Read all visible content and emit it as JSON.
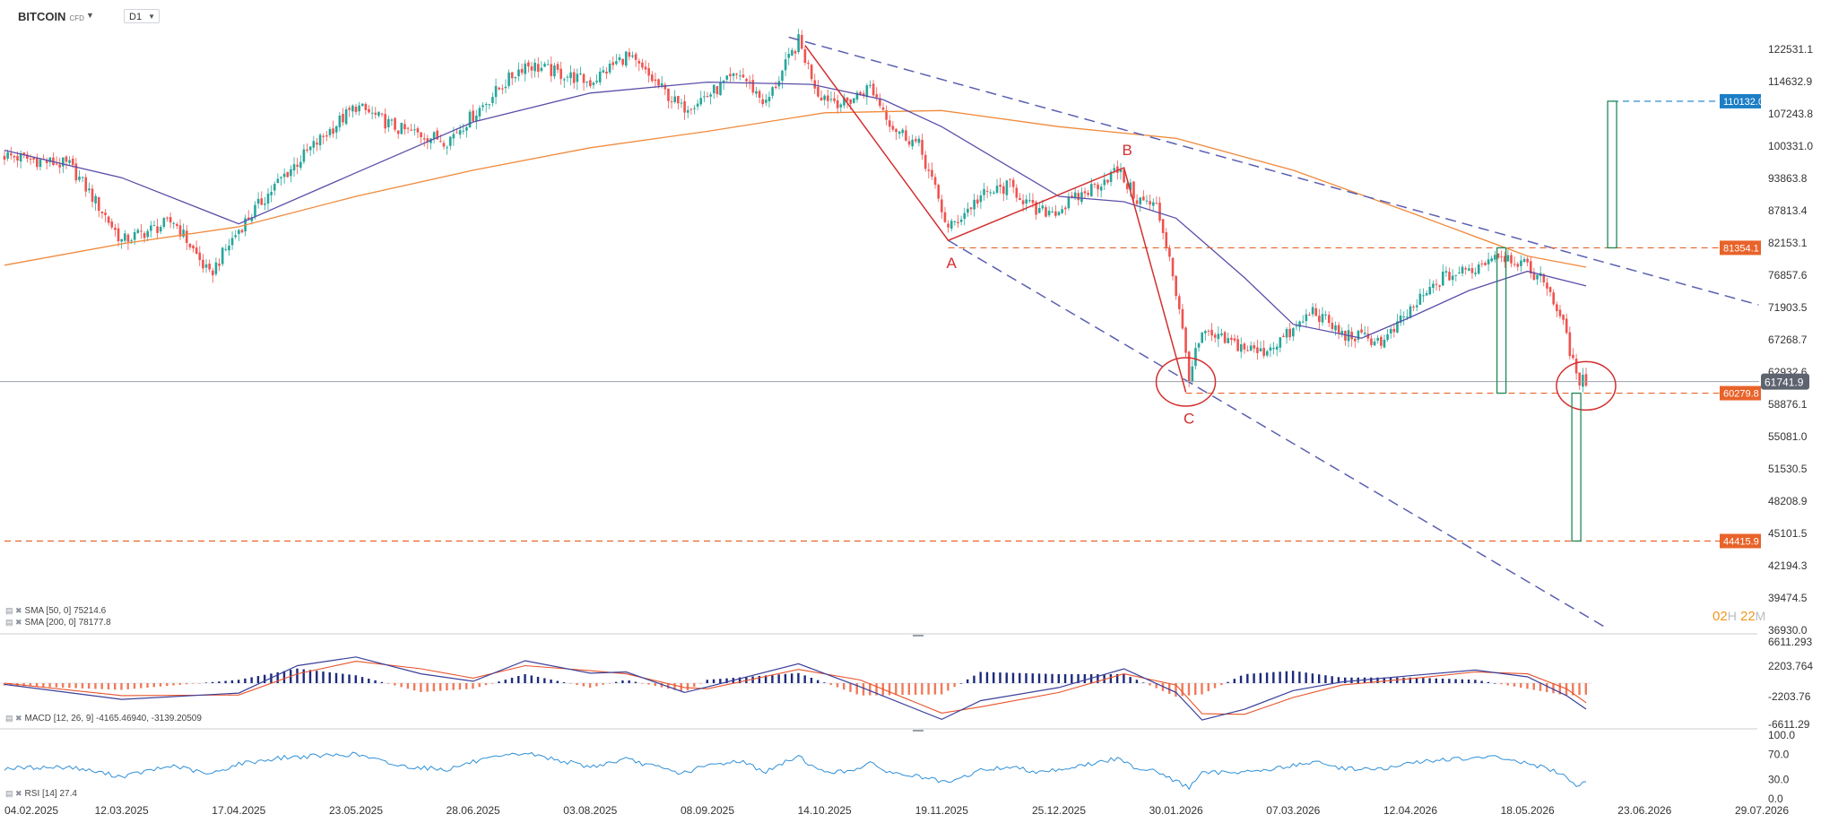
{
  "header": {
    "symbol": "BITCOIN",
    "symbol_suffix": "CFD",
    "timeframe": "D1"
  },
  "colors": {
    "up": "#26a69a",
    "down": "#ef5350",
    "sma50": "#5a4fa8",
    "sma200": "#f08a3c",
    "trend": "#5b5fb0",
    "pattern": "#d32f2f",
    "level": "#e8632a",
    "target": "#1f8a5a",
    "macd_line": "#3a3f9a",
    "macd_signal": "#e8532a",
    "hist_up": "#1e2a7a",
    "hist_down": "#f07a5a",
    "rsi": "#2f8fd8",
    "tag_blue": "#1c7ec6",
    "tag_orange": "#e8632a",
    "tag_gray": "#5e6370"
  },
  "chart_data": [
    {
      "type": "candlestick",
      "name": "BITCOIN CFD D1",
      "x_dates": [
        "04.02.2025",
        "12.03.2025",
        "17.04.2025",
        "23.05.2025",
        "28.06.2025",
        "03.08.2025",
        "08.09.2025",
        "14.10.2025",
        "19.11.2025",
        "25.12.2025",
        "30.01.2026",
        "07.03.2026",
        "12.04.2026",
        "18.05.2026",
        "23.06.2026",
        "29.07.2026"
      ],
      "ylim": [
        36930.0,
        126000
      ],
      "y_ticks": [
        "122531.1",
        "114632.9",
        "107243.8",
        "100331.0",
        "93863.8",
        "87813.4",
        "82153.1",
        "76857.6",
        "71903.5",
        "67268.7",
        "62932.6",
        "58876.1",
        "55081.0",
        "51530.5",
        "48208.9",
        "45101.5",
        "42194.3",
        "39474.5",
        "36930.0"
      ],
      "price_path": [
        {
          "d": "04.02.2025",
          "v": 98500
        },
        {
          "d": "24.02.2025",
          "v": 96500
        },
        {
          "d": "12.03.2025",
          "v": 82500
        },
        {
          "d": "28.03.2025",
          "v": 86000
        },
        {
          "d": "08.04.2025",
          "v": 76800
        },
        {
          "d": "17.04.2025",
          "v": 84500
        },
        {
          "d": "01.05.2025",
          "v": 94500
        },
        {
          "d": "23.05.2025",
          "v": 109000
        },
        {
          "d": "05.06.2025",
          "v": 104000
        },
        {
          "d": "20.06.2025",
          "v": 101500
        },
        {
          "d": "28.06.2025",
          "v": 107000
        },
        {
          "d": "14.07.2025",
          "v": 119000
        },
        {
          "d": "03.08.2025",
          "v": 114500
        },
        {
          "d": "14.08.2025",
          "v": 121000
        },
        {
          "d": "31.08.2025",
          "v": 108500
        },
        {
          "d": "08.09.2025",
          "v": 111500
        },
        {
          "d": "18.09.2025",
          "v": 116500
        },
        {
          "d": "26.09.2025",
          "v": 109500
        },
        {
          "d": "06.10.2025",
          "v": 124500
        },
        {
          "d": "12.10.2025",
          "v": 112000
        },
        {
          "d": "20.10.2025",
          "v": 109500
        },
        {
          "d": "28.10.2025",
          "v": 113500
        },
        {
          "d": "04.11.2025",
          "v": 104500
        },
        {
          "d": "12.11.2025",
          "v": 100500
        },
        {
          "d": "21.11.2025",
          "v": 84500
        },
        {
          "d": "01.12.2025",
          "v": 90500
        },
        {
          "d": "10.12.2025",
          "v": 92500
        },
        {
          "d": "18.12.2025",
          "v": 87500
        },
        {
          "d": "25.12.2025",
          "v": 88000
        },
        {
          "d": "04.01.2026",
          "v": 92000
        },
        {
          "d": "12.01.2026",
          "v": 95500
        },
        {
          "d": "18.01.2026",
          "v": 90000
        },
        {
          "d": "24.01.2026",
          "v": 88500
        },
        {
          "d": "28.01.2026",
          "v": 80000
        },
        {
          "d": "03.02.2026",
          "v": 62500
        },
        {
          "d": "07.02.2026",
          "v": 68000
        },
        {
          "d": "15.02.2026",
          "v": 67000
        },
        {
          "d": "25.02.2026",
          "v": 65500
        },
        {
          "d": "07.03.2026",
          "v": 68500
        },
        {
          "d": "13.03.2026",
          "v": 71500
        },
        {
          "d": "22.03.2026",
          "v": 68000
        },
        {
          "d": "30.03.2026",
          "v": 67500
        },
        {
          "d": "04.04.2026",
          "v": 67000
        },
        {
          "d": "12.04.2026",
          "v": 71500
        },
        {
          "d": "22.04.2026",
          "v": 76500
        },
        {
          "d": "02.05.2026",
          "v": 78000
        },
        {
          "d": "08.05.2026",
          "v": 80500
        },
        {
          "d": "14.05.2026",
          "v": 79500
        },
        {
          "d": "18.05.2026",
          "v": 78000
        },
        {
          "d": "24.05.2026",
          "v": 75500
        },
        {
          "d": "30.05.2026",
          "v": 68000
        },
        {
          "d": "02.06.2026",
          "v": 62000
        },
        {
          "d": "05.06.2026",
          "v": 61741.9
        }
      ],
      "sma50": [
        {
          "d": "04.02.2025",
          "v": 99500
        },
        {
          "d": "12.03.2025",
          "v": 94000
        },
        {
          "d": "17.04.2025",
          "v": 85500
        },
        {
          "d": "23.05.2025",
          "v": 95000
        },
        {
          "d": "28.06.2025",
          "v": 105500
        },
        {
          "d": "03.08.2025",
          "v": 112000
        },
        {
          "d": "08.09.2025",
          "v": 114500
        },
        {
          "d": "10.10.2025",
          "v": 114000
        },
        {
          "d": "01.11.2025",
          "v": 110500
        },
        {
          "d": "19.11.2025",
          "v": 104500
        },
        {
          "d": "25.12.2025",
          "v": 90500
        },
        {
          "d": "14.01.2026",
          "v": 89500
        },
        {
          "d": "30.01.2026",
          "v": 86500
        },
        {
          "d": "20.02.2026",
          "v": 76500
        },
        {
          "d": "07.03.2026",
          "v": 69500
        },
        {
          "d": "28.03.2026",
          "v": 67500
        },
        {
          "d": "12.04.2026",
          "v": 70500
        },
        {
          "d": "30.04.2026",
          "v": 74500
        },
        {
          "d": "18.05.2026",
          "v": 77500
        },
        {
          "d": "05.06.2026",
          "v": 75214.6
        }
      ],
      "sma200": [
        {
          "d": "04.02.2025",
          "v": 78500
        },
        {
          "d": "12.03.2025",
          "v": 82000
        },
        {
          "d": "17.04.2025",
          "v": 85000
        },
        {
          "d": "23.05.2025",
          "v": 90500
        },
        {
          "d": "28.06.2025",
          "v": 95500
        },
        {
          "d": "03.08.2025",
          "v": 100000
        },
        {
          "d": "08.09.2025",
          "v": 103500
        },
        {
          "d": "14.10.2025",
          "v": 107500
        },
        {
          "d": "19.11.2025",
          "v": 108000
        },
        {
          "d": "25.12.2025",
          "v": 104500
        },
        {
          "d": "30.01.2026",
          "v": 102000
        },
        {
          "d": "07.03.2026",
          "v": 95500
        },
        {
          "d": "12.04.2026",
          "v": 87500
        },
        {
          "d": "18.05.2026",
          "v": 80000
        },
        {
          "d": "05.06.2026",
          "v": 78177.8
        }
      ],
      "trendlines": [
        {
          "d1": "03.10.2025",
          "v1": 125500,
          "d2": "28.07.2026",
          "v2": 72300
        },
        {
          "d1": "21.11.2025",
          "v1": 82600,
          "d2": "12.06.2026",
          "v2": 37000
        }
      ],
      "pattern_abc": [
        {
          "d": "08.10.2025",
          "v": 123500
        },
        {
          "d": "21.11.2025",
          "v": 82600
        },
        {
          "d": "14.01.2026",
          "v": 96000
        },
        {
          "d": "02.02.2026",
          "v": 60400
        }
      ],
      "pattern_labels": [
        {
          "text": "A",
          "d": "22.11.2025",
          "v": 78000
        },
        {
          "text": "B",
          "d": "15.01.2026",
          "v": 98500
        },
        {
          "text": "C",
          "d": "03.02.2026",
          "v": 56600
        }
      ],
      "circles": [
        {
          "d": "02.02.2026",
          "v": 61700
        },
        {
          "d": "05.06.2026",
          "v": 61200
        }
      ],
      "measure_boxes": [
        {
          "d": "10.05.2026",
          "top": 81354.1,
          "bottom": 60279.8
        },
        {
          "d": "13.06.2026",
          "top": 110132.0,
          "bottom": 81354.1
        },
        {
          "d": "02.06.2026",
          "top": 60279.8,
          "bottom": 44415.9
        }
      ],
      "h_levels": [
        {
          "value": "110132.0",
          "style": "blue",
          "from": "13.06.2026"
        },
        {
          "value": "81354.1",
          "style": "orange",
          "from": "21.11.2025"
        },
        {
          "value": "60279.8",
          "style": "orange",
          "from": "02.02.2026"
        },
        {
          "value": "44415.9",
          "style": "orange",
          "from": "04.02.2025"
        }
      ],
      "last_price": "61741.9",
      "legend": [
        {
          "label": "SMA [50, 0]",
          "value": "75214.6"
        },
        {
          "label": "SMA [200, 0]",
          "value": "78177.8"
        }
      ],
      "timer": {
        "h": "02",
        "h_unit": "H",
        "m": "22",
        "m_unit": "M"
      }
    },
    {
      "type": "macd",
      "label": "MACD [12, 26, 9]",
      "values": [
        "-4165.46940",
        "-3139.20509"
      ],
      "y_ticks": [
        "6611.293",
        "2203.764",
        "-2203.76",
        "-6611.29"
      ],
      "ylim": [
        -6611.29,
        6611.293
      ],
      "macd": [
        {
          "d": "04.02.2025",
          "v": -200
        },
        {
          "d": "12.03.2025",
          "v": -2600
        },
        {
          "d": "17.04.2025",
          "v": -1600
        },
        {
          "d": "05.05.2025",
          "v": 2800
        },
        {
          "d": "23.05.2025",
          "v": 4200
        },
        {
          "d": "12.06.2025",
          "v": 1500
        },
        {
          "d": "28.06.2025",
          "v": 300
        },
        {
          "d": "14.07.2025",
          "v": 3600
        },
        {
          "d": "03.08.2025",
          "v": 1600
        },
        {
          "d": "14.08.2025",
          "v": 1800
        },
        {
          "d": "01.09.2025",
          "v": -1500
        },
        {
          "d": "08.09.2025",
          "v": -600
        },
        {
          "d": "06.10.2025",
          "v": 3100
        },
        {
          "d": "25.10.2025",
          "v": -600
        },
        {
          "d": "19.11.2025",
          "v": -5800
        },
        {
          "d": "01.12.2025",
          "v": -2800
        },
        {
          "d": "25.12.2025",
          "v": -700
        },
        {
          "d": "14.01.2026",
          "v": 2300
        },
        {
          "d": "30.01.2026",
          "v": -1500
        },
        {
          "d": "07.02.2026",
          "v": -5900
        },
        {
          "d": "20.02.2026",
          "v": -4200
        },
        {
          "d": "07.03.2026",
          "v": -1200
        },
        {
          "d": "22.03.2026",
          "v": 200
        },
        {
          "d": "12.04.2026",
          "v": 1200
        },
        {
          "d": "02.05.2026",
          "v": 2100
        },
        {
          "d": "18.05.2026",
          "v": 1000
        },
        {
          "d": "30.05.2026",
          "v": -2000
        },
        {
          "d": "05.06.2026",
          "v": -4165.5
        }
      ],
      "signal": [
        {
          "d": "04.02.2025",
          "v": 0
        },
        {
          "d": "12.03.2025",
          "v": -2000
        },
        {
          "d": "17.04.2025",
          "v": -1900
        },
        {
          "d": "05.05.2025",
          "v": 1500
        },
        {
          "d": "23.05.2025",
          "v": 3500
        },
        {
          "d": "12.06.2025",
          "v": 2300
        },
        {
          "d": "28.06.2025",
          "v": 800
        },
        {
          "d": "14.07.2025",
          "v": 2800
        },
        {
          "d": "03.08.2025",
          "v": 2000
        },
        {
          "d": "14.08.2025",
          "v": 1500
        },
        {
          "d": "01.09.2025",
          "v": -700
        },
        {
          "d": "08.09.2025",
          "v": -900
        },
        {
          "d": "06.10.2025",
          "v": 2200
        },
        {
          "d": "25.10.2025",
          "v": 500
        },
        {
          "d": "19.11.2025",
          "v": -4800
        },
        {
          "d": "01.12.2025",
          "v": -3800
        },
        {
          "d": "25.12.2025",
          "v": -1500
        },
        {
          "d": "14.01.2026",
          "v": 1500
        },
        {
          "d": "30.01.2026",
          "v": -300
        },
        {
          "d": "07.02.2026",
          "v": -4900
        },
        {
          "d": "20.02.2026",
          "v": -5000
        },
        {
          "d": "07.03.2026",
          "v": -2300
        },
        {
          "d": "22.03.2026",
          "v": -300
        },
        {
          "d": "12.04.2026",
          "v": 700
        },
        {
          "d": "02.05.2026",
          "v": 1800
        },
        {
          "d": "18.05.2026",
          "v": 1500
        },
        {
          "d": "30.05.2026",
          "v": -900
        },
        {
          "d": "05.06.2026",
          "v": -3139.2
        }
      ]
    },
    {
      "type": "line",
      "label": "RSI [14]",
      "value": "27.4",
      "y_ticks": [
        "100.0",
        "70.0",
        "30.0",
        "0.0"
      ],
      "ylim": [
        0,
        100
      ],
      "rsi": [
        {
          "d": "04.02.2025",
          "v": 48
        },
        {
          "d": "24.02.2025",
          "v": 50
        },
        {
          "d": "12.03.2025",
          "v": 35
        },
        {
          "d": "28.03.2025",
          "v": 52
        },
        {
          "d": "08.04.2025",
          "v": 38
        },
        {
          "d": "17.04.2025",
          "v": 55
        },
        {
          "d": "01.05.2025",
          "v": 65
        },
        {
          "d": "23.05.2025",
          "v": 70
        },
        {
          "d": "05.06.2025",
          "v": 52
        },
        {
          "d": "20.06.2025",
          "v": 46
        },
        {
          "d": "28.06.2025",
          "v": 58
        },
        {
          "d": "14.07.2025",
          "v": 72
        },
        {
          "d": "03.08.2025",
          "v": 50
        },
        {
          "d": "14.08.2025",
          "v": 62
        },
        {
          "d": "31.08.2025",
          "v": 40
        },
        {
          "d": "08.09.2025",
          "v": 52
        },
        {
          "d": "18.09.2025",
          "v": 60
        },
        {
          "d": "26.09.2025",
          "v": 42
        },
        {
          "d": "06.10.2025",
          "v": 68
        },
        {
          "d": "12.10.2025",
          "v": 44
        },
        {
          "d": "20.10.2025",
          "v": 42
        },
        {
          "d": "28.10.2025",
          "v": 55
        },
        {
          "d": "04.11.2025",
          "v": 40
        },
        {
          "d": "12.11.2025",
          "v": 35
        },
        {
          "d": "21.11.2025",
          "v": 24
        },
        {
          "d": "01.12.2025",
          "v": 45
        },
        {
          "d": "10.12.2025",
          "v": 50
        },
        {
          "d": "18.12.2025",
          "v": 43
        },
        {
          "d": "25.12.2025",
          "v": 46
        },
        {
          "d": "04.01.2026",
          "v": 55
        },
        {
          "d": "12.01.2026",
          "v": 63
        },
        {
          "d": "18.01.2026",
          "v": 48
        },
        {
          "d": "24.01.2026",
          "v": 45
        },
        {
          "d": "28.01.2026",
          "v": 32
        },
        {
          "d": "03.02.2026",
          "v": 18
        },
        {
          "d": "07.02.2026",
          "v": 40
        },
        {
          "d": "15.02.2026",
          "v": 42
        },
        {
          "d": "25.02.2026",
          "v": 44
        },
        {
          "d": "07.03.2026",
          "v": 52
        },
        {
          "d": "13.03.2026",
          "v": 58
        },
        {
          "d": "22.03.2026",
          "v": 48
        },
        {
          "d": "30.03.2026",
          "v": 47
        },
        {
          "d": "04.04.2026",
          "v": 46
        },
        {
          "d": "12.04.2026",
          "v": 56
        },
        {
          "d": "22.04.2026",
          "v": 62
        },
        {
          "d": "02.05.2026",
          "v": 63
        },
        {
          "d": "08.05.2026",
          "v": 66
        },
        {
          "d": "14.05.2026",
          "v": 60
        },
        {
          "d": "18.05.2026",
          "v": 55
        },
        {
          "d": "24.05.2026",
          "v": 48
        },
        {
          "d": "30.05.2026",
          "v": 33
        },
        {
          "d": "02.06.2026",
          "v": 22
        },
        {
          "d": "05.06.2026",
          "v": 27.4
        }
      ]
    }
  ]
}
